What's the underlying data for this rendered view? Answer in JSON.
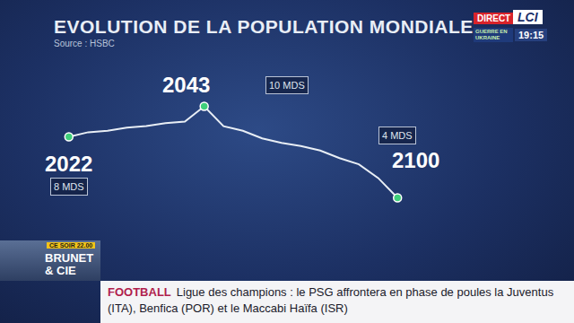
{
  "chart_data": {
    "type": "line",
    "title": "EVOLUTION DE LA POPULATION MONDIALE",
    "subtitle": "Source : HSBC",
    "categories": [
      "2022",
      null,
      null,
      null,
      null,
      null,
      null,
      "2043",
      null,
      null,
      null,
      null,
      null,
      null,
      null,
      null,
      null,
      "2100"
    ],
    "values": [
      8,
      8.3,
      8.4,
      8.6,
      8.7,
      8.9,
      9.0,
      10,
      8.7,
      8.4,
      7.9,
      7.6,
      7.4,
      7.1,
      6.6,
      6.2,
      5.3,
      4
    ],
    "value_labels": [
      "8 MDS",
      null,
      null,
      null,
      null,
      null,
      null,
      "10 MDS",
      null,
      null,
      null,
      null,
      null,
      null,
      null,
      null,
      null,
      "4 MDS"
    ],
    "color": "#e8eef5",
    "marker": "circle",
    "ylim": [
      3.5,
      10.5
    ],
    "tick_labels": false,
    "grid": false
  },
  "broadcast": {
    "live": "DIRECT",
    "logo": "LCI",
    "banner": "GUERRE EN UKRAINE",
    "time": "19:15",
    "program_when": "CE SOIR 22.00",
    "program_name": "BRUNET & CIE",
    "ticker_topic": "FOOTBALL",
    "ticker_text": "Ligue des champions : le PSG affrontera en phase de poules la Juventus (ITA), Benfica (POR) et le Maccabi Haïfa (ISR)"
  }
}
